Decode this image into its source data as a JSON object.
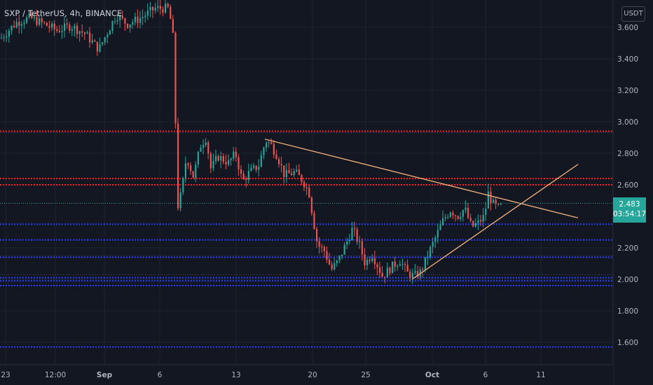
{
  "header": {
    "title": "SXP / TetherUS, 4h, BINANCE",
    "currency": "USDT"
  },
  "last_price": {
    "value": "2.483",
    "countdown": "03:54:17"
  },
  "colors": {
    "background": "#131722",
    "up": "#26a69a",
    "down": "#ef5350",
    "resistance": "#ff1f1f",
    "support": "#2b3bff",
    "trendline": "#f5b27a",
    "text": "#d1d4dc",
    "axis_text": "#b2b5be"
  },
  "chart_data": {
    "type": "candlestick",
    "symbol": "SXP / TetherUS",
    "interval": "4h",
    "exchange": "BINANCE",
    "y_axis": {
      "ticks": [
        "3.600",
        "3.400",
        "3.200",
        "3.000",
        "2.800",
        "2.600",
        "2.200",
        "2.000",
        "1.800",
        "1.600"
      ],
      "range": [
        1.52,
        3.72
      ]
    },
    "x_axis": {
      "ticks": [
        "23",
        "12:00",
        "Sep",
        "6",
        "13",
        "20",
        "25",
        "Oct",
        "6",
        "11"
      ]
    },
    "horizontal_levels": {
      "resistance": [
        2.94,
        2.64,
        2.6
      ],
      "support": [
        2.35,
        2.25,
        2.14,
        2.01,
        1.99,
        1.96,
        1.57
      ]
    },
    "trendlines": [
      {
        "role": "descending",
        "from": [
          "Sep 15",
          2.89
        ],
        "to": [
          "Oct 12",
          2.39
        ]
      },
      {
        "role": "ascending",
        "from": [
          "Sep 29",
          2.0
        ],
        "to": [
          "Oct 12",
          2.73
        ]
      }
    ],
    "grid": true,
    "legend": "none"
  }
}
